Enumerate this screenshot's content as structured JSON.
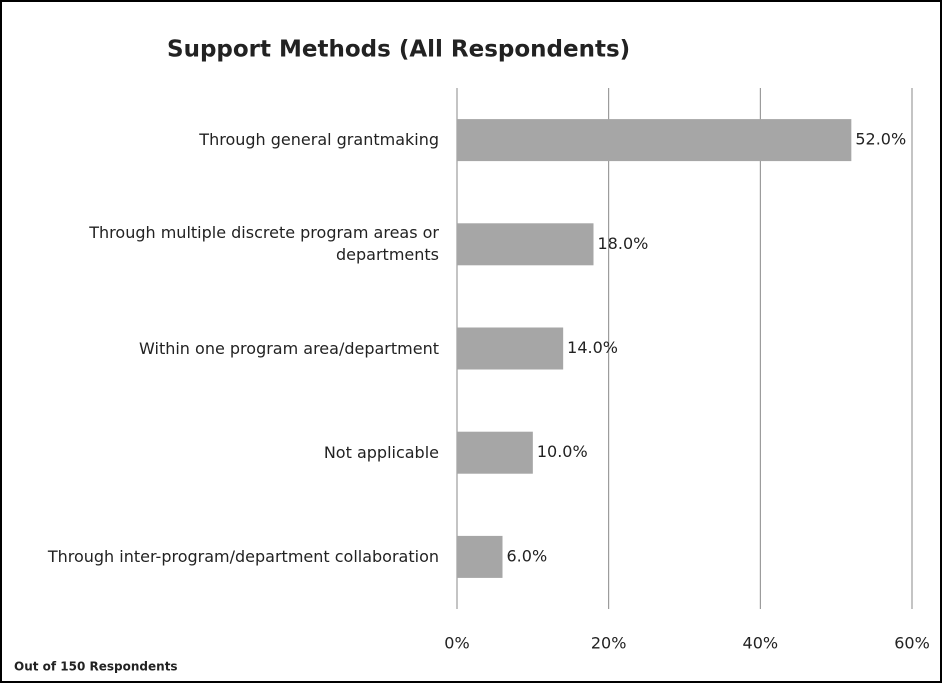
{
  "chart_data": {
    "type": "bar",
    "orientation": "horizontal",
    "title": "Support Methods (All Respondents)",
    "categories": [
      "Through general grantmaking",
      "Through multiple discrete program areas or departments",
      "Within one program area/department",
      "Not applicable",
      "Through inter-program/department collaboration"
    ],
    "values": [
      52.0,
      18.0,
      14.0,
      10.0,
      6.0
    ],
    "value_labels": [
      "52.0%",
      "18.0%",
      "14.0%",
      "10.0%",
      "6.0%"
    ],
    "color": "#a6a6a6",
    "xlim": [
      0,
      60
    ],
    "xticks": [
      {
        "value": 0,
        "label": "0%"
      },
      {
        "value": 20,
        "label": "20%"
      },
      {
        "value": 40,
        "label": "40%"
      },
      {
        "value": 60,
        "label": "60%"
      }
    ],
    "grid": true,
    "footnote": "Out of 150 Respondents"
  }
}
